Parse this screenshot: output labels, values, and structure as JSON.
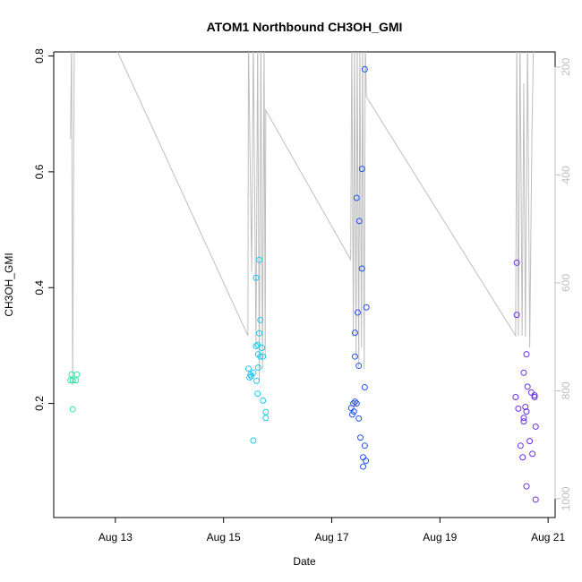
{
  "chart_data": {
    "type": "scatter",
    "title": "ATOM1 Northbound CH3OH_GMI",
    "x_label": "Date",
    "y_label": "CH3OH_GMI",
    "xlim": [
      11.86,
      21.13
    ],
    "xticks": [
      {
        "value": 13,
        "label": "Aug 13"
      },
      {
        "value": 15,
        "label": "Aug 15"
      },
      {
        "value": 17,
        "label": "Aug 17"
      },
      {
        "value": 19,
        "label": "Aug 19"
      },
      {
        "value": 21,
        "label": "Aug 21"
      }
    ],
    "ylim": [
      0.003,
      0.807
    ],
    "yticks": [
      0.2,
      0.4,
      0.6,
      0.8
    ],
    "y2lim": [
      1035,
      172
    ],
    "y2ticks": [
      200,
      400,
      600,
      800,
      1000
    ],
    "series": [
      {
        "type": "line",
        "axis": "y2",
        "color": "#bebebe",
        "x": [
          12.17,
          12.19,
          12.21,
          12.24,
          12.28,
          12.3,
          15.45,
          15.46,
          15.52,
          15.55,
          15.6,
          15.63,
          15.66,
          15.69,
          15.72,
          15.75,
          15.77,
          15.78,
          17.35,
          17.37,
          17.4,
          17.42,
          17.45,
          17.47,
          17.5,
          17.52,
          17.55,
          17.57,
          17.6,
          17.62,
          17.64,
          20.4,
          20.42,
          20.45,
          20.48,
          20.52,
          20.55,
          20.58,
          20.62,
          20.66,
          20.7,
          20.73
        ],
        "values": [
          333,
          150,
          790,
          150,
          150,
          10,
          698,
          150,
          580,
          150,
          720,
          150,
          780,
          150,
          760,
          150,
          740,
          280,
          557,
          150,
          700,
          150,
          740,
          150,
          756,
          150,
          720,
          150,
          760,
          150,
          255,
          698,
          150,
          698,
          150,
          698,
          230,
          700,
          150,
          720,
          330,
          150
        ]
      },
      {
        "color": "#2ee6a3",
        "x": [
          12.19,
          12.17,
          12.21,
          12.29,
          12.27,
          12.21
        ],
        "values": [
          0.25,
          0.24,
          0.24,
          0.25,
          0.24,
          0.19
        ]
      },
      {
        "color": "#1fc8f0",
        "x": [
          15.46,
          15.5,
          15.51,
          15.55,
          15.48,
          15.6,
          15.66,
          15.68,
          15.66,
          15.63,
          15.64,
          15.68,
          15.73,
          15.64,
          15.61,
          15.63,
          15.73,
          15.78,
          15.78,
          15.55,
          15.6,
          15.71
        ],
        "values": [
          0.26,
          0.25,
          0.247,
          0.253,
          0.245,
          0.417,
          0.448,
          0.344,
          0.321,
          0.301,
          0.285,
          0.281,
          0.281,
          0.262,
          0.239,
          0.217,
          0.205,
          0.185,
          0.175,
          0.136,
          0.299,
          0.296
        ]
      },
      {
        "color": "#2352ee",
        "x": [
          17.61,
          17.56,
          17.46,
          17.51,
          17.56,
          17.64,
          17.48,
          17.43,
          17.43,
          17.5,
          17.61,
          17.36,
          17.4,
          17.43,
          17.46,
          17.38,
          17.5,
          17.53,
          17.61,
          17.58,
          17.63,
          17.58,
          17.41
        ],
        "values": [
          0.777,
          0.605,
          0.555,
          0.515,
          0.433,
          0.366,
          0.357,
          0.322,
          0.281,
          0.265,
          0.228,
          0.192,
          0.2,
          0.203,
          0.2,
          0.181,
          0.174,
          0.141,
          0.127,
          0.107,
          0.101,
          0.091,
          0.186
        ]
      },
      {
        "color": "#6a2ee8",
        "x": [
          20.42,
          20.42,
          20.6,
          20.55,
          20.62,
          20.4,
          20.69,
          20.75,
          20.75,
          20.45,
          20.58,
          20.6,
          20.55,
          20.55,
          20.77,
          20.66,
          20.49,
          20.71,
          20.53,
          20.6,
          20.77
        ],
        "values": [
          0.443,
          0.353,
          0.285,
          0.253,
          0.229,
          0.211,
          0.219,
          0.214,
          0.211,
          0.191,
          0.194,
          0.186,
          0.175,
          0.169,
          0.16,
          0.135,
          0.127,
          0.113,
          0.107,
          0.057,
          0.034
        ]
      }
    ]
  }
}
